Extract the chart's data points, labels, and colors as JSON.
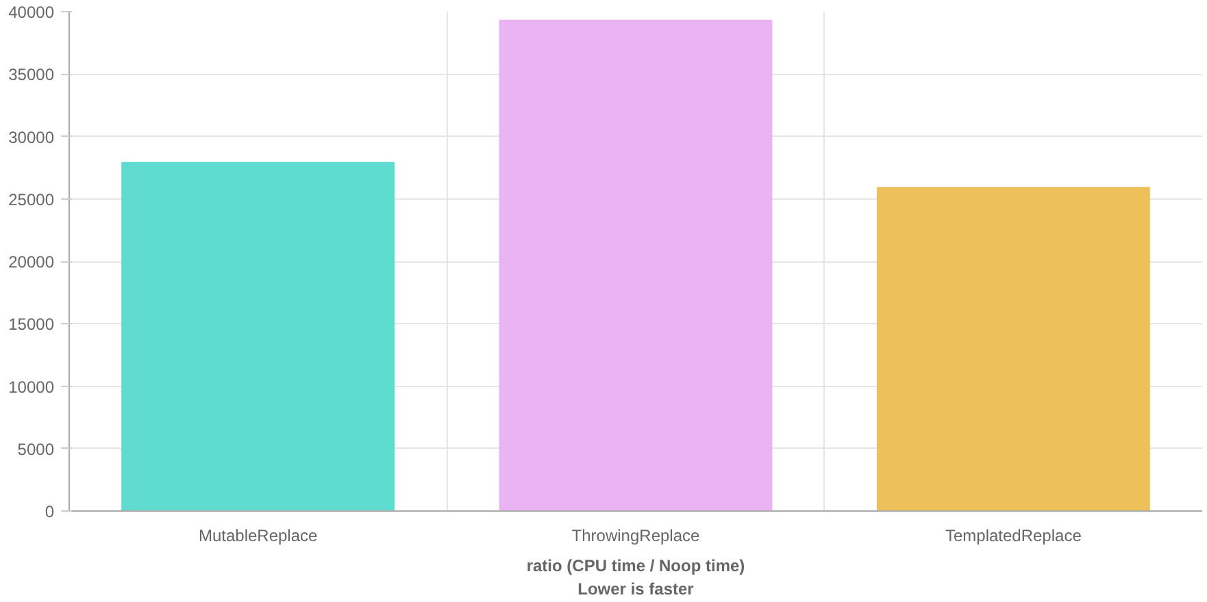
{
  "chart_data": {
    "type": "bar",
    "xlabel": "ratio (CPU time / Noop time)\nLower is faster",
    "categories": [
      "MutableReplace",
      "ThrowingReplace",
      "TemplatedReplace"
    ],
    "values": [
      27900,
      39300,
      25900
    ],
    "colors": [
      "#5fdbd0",
      "#eab3f3",
      "#edc05a"
    ],
    "ylim": [
      0,
      40000
    ],
    "yticks": [
      0,
      5000,
      10000,
      15000,
      20000,
      25000,
      30000,
      35000,
      40000
    ],
    "grid": true
  }
}
